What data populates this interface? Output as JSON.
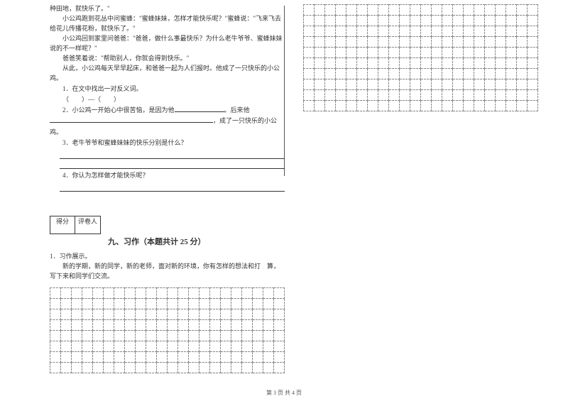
{
  "passage": {
    "p1": "种田地，就快乐了。\"",
    "p2": "小公鸡跑到花丛中问蜜蜂：\"蜜蜂妹妹，怎样才能快乐呢？\"蜜蜂说：\"飞来飞去给花儿传播花粉，就快乐了。\"",
    "p3": "小公鸡回到家里问爸爸：\"爸爸，做什么事最快乐？为什么老牛爷爷、蜜蜂妹妹说的不一样呢？\"",
    "p4": "爸爸笑着说：\"帮助别人，你就会得到快乐。\"",
    "p5": "从此，小公鸡每天早早起床，和爸爸一起为人们报时。他成了一只快乐的小公鸡。"
  },
  "questions": {
    "q1": "1．在文中找出一对反义词。",
    "q1b": "（　　）—（　　）",
    "q2a": "2．小公鸡一开始心中很苦恼，是因为他",
    "q2b": "。后来他",
    "q2c": "，成了一只快乐的小公鸡。",
    "q3": "3．老牛爷爷和蜜蜂妹妹的快乐分别是什么？",
    "q4": "4．你认为怎样做才能快乐呢？"
  },
  "score": {
    "left": "得分",
    "right": "评卷人"
  },
  "section9": {
    "title": "九、习作（本题共计 25 分）",
    "prompt_label": "1．习作展示。",
    "prompt_body": "新的学期，新的同学，新的老师，面对新的环境，你有怎样的想法和打　算，写下来和同学们交流。"
  },
  "grid": {
    "left_rows": 8,
    "right_rows": 10,
    "cols": 22
  },
  "footer": "第  3  页  共  4  页",
  "style": {
    "underline_short": 70,
    "underline_med": 120
  }
}
